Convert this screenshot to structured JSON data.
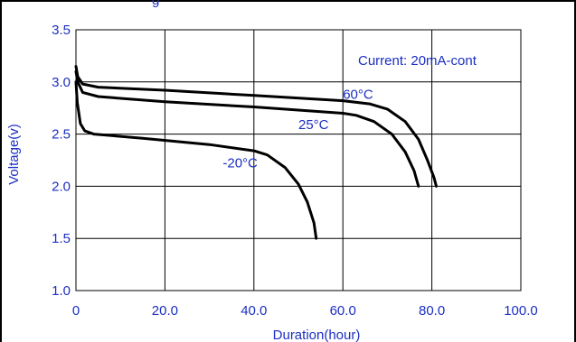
{
  "chart_data": {
    "type": "line",
    "title_fragment": "g",
    "xlabel": "Duration(hour)",
    "ylabel": "Voltage(v)",
    "xlim": [
      0,
      100
    ],
    "ylim": [
      1.0,
      3.5
    ],
    "x_ticks": [
      "0",
      "20.0",
      "40.0",
      "60.0",
      "80.0",
      "100.0"
    ],
    "y_ticks": [
      "1.0",
      "1.5",
      "2.0",
      "2.5",
      "3.0",
      "3.5"
    ],
    "grid": true,
    "annotation": "Current: 20mA-cont",
    "series": [
      {
        "name": "60°C",
        "points": [
          [
            0,
            3.15
          ],
          [
            0.4,
            3.05
          ],
          [
            1.5,
            2.98
          ],
          [
            5,
            2.95
          ],
          [
            20,
            2.92
          ],
          [
            40,
            2.87
          ],
          [
            60,
            2.82
          ],
          [
            66,
            2.79
          ],
          [
            70,
            2.74
          ],
          [
            74,
            2.62
          ],
          [
            77,
            2.45
          ],
          [
            79,
            2.25
          ],
          [
            80.5,
            2.08
          ],
          [
            81,
            2.0
          ]
        ]
      },
      {
        "name": "25°C",
        "points": [
          [
            0,
            3.1
          ],
          [
            0.4,
            3.0
          ],
          [
            1.5,
            2.9
          ],
          [
            5,
            2.86
          ],
          [
            20,
            2.81
          ],
          [
            40,
            2.76
          ],
          [
            60,
            2.7
          ],
          [
            63,
            2.68
          ],
          [
            67,
            2.62
          ],
          [
            71,
            2.5
          ],
          [
            74,
            2.33
          ],
          [
            76,
            2.15
          ],
          [
            77,
            2.0
          ]
        ]
      },
      {
        "name": "-20°C",
        "points": [
          [
            0,
            3.0
          ],
          [
            0.3,
            2.8
          ],
          [
            1,
            2.6
          ],
          [
            2,
            2.53
          ],
          [
            4,
            2.5
          ],
          [
            15,
            2.46
          ],
          [
            30,
            2.4
          ],
          [
            40,
            2.34
          ],
          [
            43,
            2.3
          ],
          [
            47,
            2.18
          ],
          [
            50,
            2.02
          ],
          [
            52,
            1.85
          ],
          [
            53.5,
            1.65
          ],
          [
            54,
            1.5
          ]
        ]
      }
    ],
    "series_label_positions": [
      {
        "name": "60°C",
        "x": 60,
        "y": 2.84
      },
      {
        "name": "25°C",
        "x": 50,
        "y": 2.55
      },
      {
        "name": "-20°C",
        "x": 33,
        "y": 2.18
      }
    ]
  },
  "style": {
    "text_color": "#1b2fc2",
    "line_color": "#000000",
    "grid_color": "#000000"
  }
}
